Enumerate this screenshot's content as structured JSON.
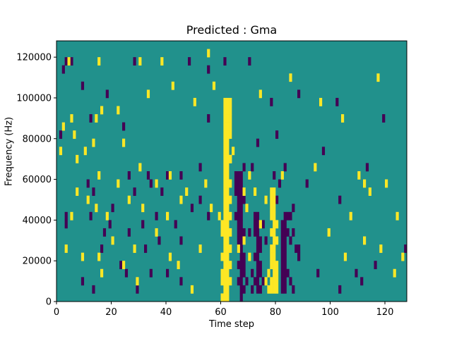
{
  "chart_data": {
    "type": "heatmap",
    "title": "Predicted : Gma",
    "xlabel": "Time step",
    "ylabel": "Frequency (Hz)",
    "xlim": [
      0,
      128
    ],
    "ylim": [
      0,
      128000
    ],
    "x_ticks": [
      0,
      20,
      40,
      60,
      80,
      100,
      120
    ],
    "y_ticks": [
      0,
      20000,
      40000,
      60000,
      80000,
      100000,
      120000
    ],
    "colors": {
      "low": "#440154",
      "mid": "#21918c",
      "high": "#fde725"
    },
    "background_value": 0,
    "cell_size": {
      "time_steps": 1,
      "hz": 4000
    },
    "cells_high": [
      [
        4,
        29
      ],
      [
        15,
        29
      ],
      [
        30,
        29
      ],
      [
        38,
        29
      ],
      [
        55,
        30
      ],
      [
        57,
        26
      ],
      [
        74,
        25
      ],
      [
        85,
        27
      ],
      [
        117,
        27
      ],
      [
        33,
        25
      ],
      [
        50,
        24
      ],
      [
        42,
        26
      ],
      [
        5,
        22
      ],
      [
        96,
        24
      ],
      [
        16,
        23
      ],
      [
        22,
        23
      ],
      [
        14,
        22
      ],
      [
        104,
        22
      ],
      [
        6,
        20
      ],
      [
        13,
        19
      ],
      [
        30,
        16
      ],
      [
        36,
        14
      ],
      [
        22,
        14
      ],
      [
        41,
        15
      ],
      [
        110,
        15
      ],
      [
        1,
        18
      ],
      [
        15,
        15
      ],
      [
        24,
        19
      ],
      [
        7,
        13
      ],
      [
        14,
        11
      ],
      [
        47,
        13
      ],
      [
        54,
        14
      ],
      [
        63,
        17
      ],
      [
        94,
        16
      ],
      [
        112,
        14
      ],
      [
        120,
        14
      ],
      [
        5,
        10
      ],
      [
        26,
        12
      ],
      [
        114,
        13
      ],
      [
        107,
        10
      ],
      [
        124,
        10
      ],
      [
        2,
        21
      ],
      [
        7,
        17
      ],
      [
        10,
        18
      ],
      [
        64,
        18
      ],
      [
        70,
        15
      ],
      [
        82,
        15
      ],
      [
        31,
        11
      ],
      [
        40,
        10
      ],
      [
        45,
        12
      ],
      [
        56,
        11
      ],
      [
        59,
        10
      ],
      [
        3,
        6
      ],
      [
        15,
        5
      ],
      [
        28,
        6
      ],
      [
        41,
        5
      ],
      [
        62,
        8
      ],
      [
        74,
        9
      ],
      [
        11,
        12
      ],
      [
        18,
        10
      ],
      [
        20,
        7
      ],
      [
        36,
        8
      ],
      [
        52,
        6
      ],
      [
        68,
        7
      ],
      [
        9,
        5
      ],
      [
        16,
        3
      ],
      [
        24,
        4
      ],
      [
        29,
        2
      ],
      [
        44,
        4
      ],
      [
        49,
        1
      ],
      [
        99,
        8
      ],
      [
        105,
        5
      ],
      [
        112,
        7
      ],
      [
        118,
        6
      ],
      [
        123,
        3
      ],
      [
        126,
        5
      ],
      [
        61,
        24
      ],
      [
        62,
        24
      ],
      [
        63,
        24
      ],
      [
        61,
        23
      ],
      [
        62,
        23
      ],
      [
        63,
        23
      ],
      [
        61,
        22
      ],
      [
        62,
        22
      ],
      [
        63,
        22
      ],
      [
        61,
        21
      ],
      [
        62,
        21
      ],
      [
        63,
        21
      ],
      [
        61,
        20
      ],
      [
        62,
        20
      ],
      [
        63,
        20
      ],
      [
        61,
        19
      ],
      [
        62,
        19
      ],
      [
        61,
        18
      ],
      [
        62,
        18
      ],
      [
        61,
        17
      ],
      [
        62,
        17
      ],
      [
        63,
        17
      ],
      [
        61,
        16
      ],
      [
        62,
        16
      ],
      [
        61,
        15
      ],
      [
        62,
        15
      ],
      [
        61,
        14
      ],
      [
        62,
        14
      ],
      [
        63,
        14
      ],
      [
        61,
        13
      ],
      [
        62,
        13
      ],
      [
        61,
        12
      ],
      [
        62,
        12
      ],
      [
        63,
        12
      ],
      [
        61,
        11
      ],
      [
        62,
        11
      ],
      [
        61,
        10
      ],
      [
        62,
        10
      ],
      [
        63,
        10
      ],
      [
        60,
        9
      ],
      [
        61,
        9
      ],
      [
        62,
        9
      ],
      [
        60,
        8
      ],
      [
        61,
        8
      ],
      [
        62,
        8
      ],
      [
        63,
        8
      ],
      [
        61,
        7
      ],
      [
        62,
        7
      ],
      [
        61,
        6
      ],
      [
        62,
        6
      ],
      [
        63,
        6
      ],
      [
        60,
        5
      ],
      [
        61,
        5
      ],
      [
        62,
        5
      ],
      [
        61,
        4
      ],
      [
        62,
        4
      ],
      [
        63,
        4
      ],
      [
        60,
        3
      ],
      [
        61,
        3
      ],
      [
        62,
        3
      ],
      [
        60,
        2
      ],
      [
        61,
        2
      ],
      [
        62,
        2
      ],
      [
        63,
        2
      ],
      [
        61,
        1
      ],
      [
        62,
        1
      ],
      [
        60,
        0
      ],
      [
        61,
        0
      ],
      [
        62,
        0
      ],
      [
        78,
        13
      ],
      [
        79,
        13
      ],
      [
        78,
        12
      ],
      [
        79,
        12
      ],
      [
        78,
        11
      ],
      [
        79,
        11
      ],
      [
        78,
        10
      ],
      [
        79,
        10
      ],
      [
        79,
        9
      ],
      [
        80,
        9
      ],
      [
        78,
        8
      ],
      [
        79,
        8
      ],
      [
        79,
        7
      ],
      [
        80,
        7
      ],
      [
        78,
        6
      ],
      [
        79,
        6
      ],
      [
        78,
        5
      ],
      [
        79,
        5
      ],
      [
        78,
        4
      ],
      [
        79,
        4
      ],
      [
        80,
        4
      ],
      [
        79,
        3
      ],
      [
        80,
        3
      ],
      [
        78,
        2
      ],
      [
        79,
        2
      ],
      [
        80,
        2
      ],
      [
        78,
        1
      ],
      [
        79,
        1
      ],
      [
        80,
        1
      ],
      [
        77,
        3
      ],
      [
        76,
        2
      ],
      [
        77,
        1
      ],
      [
        69,
        11
      ],
      [
        72,
        13
      ],
      [
        76,
        12
      ],
      [
        70,
        5
      ],
      [
        66,
        6
      ],
      [
        68,
        13
      ]
    ],
    "cells_low": [
      [
        3,
        29
      ],
      [
        5,
        29
      ],
      [
        28,
        29
      ],
      [
        48,
        29
      ],
      [
        70,
        29
      ],
      [
        55,
        28
      ],
      [
        61,
        29
      ],
      [
        2,
        28
      ],
      [
        9,
        26
      ],
      [
        18,
        25
      ],
      [
        78,
        24
      ],
      [
        88,
        25
      ],
      [
        102,
        24
      ],
      [
        55,
        22
      ],
      [
        119,
        22
      ],
      [
        1,
        20
      ],
      [
        12,
        22
      ],
      [
        24,
        21
      ],
      [
        80,
        20
      ],
      [
        73,
        19
      ],
      [
        97,
        18
      ],
      [
        33,
        15
      ],
      [
        34,
        14
      ],
      [
        45,
        15
      ],
      [
        83,
        16
      ],
      [
        68,
        16
      ],
      [
        71,
        16
      ],
      [
        11,
        14
      ],
      [
        26,
        15
      ],
      [
        40,
        15
      ],
      [
        52,
        16
      ],
      [
        91,
        14
      ],
      [
        113,
        16
      ],
      [
        12,
        10
      ],
      [
        20,
        11
      ],
      [
        28,
        13
      ],
      [
        38,
        13
      ],
      [
        49,
        11
      ],
      [
        52,
        12
      ],
      [
        3,
        9
      ],
      [
        17,
        8
      ],
      [
        36,
        10
      ],
      [
        45,
        7
      ],
      [
        86,
        11
      ],
      [
        103,
        12
      ],
      [
        3,
        10
      ],
      [
        13,
        13
      ],
      [
        19,
        9
      ],
      [
        31,
        9
      ],
      [
        43,
        9
      ],
      [
        55,
        10
      ],
      [
        23,
        4
      ],
      [
        25,
        3
      ],
      [
        32,
        6
      ],
      [
        37,
        7
      ],
      [
        40,
        3
      ],
      [
        45,
        2
      ],
      [
        9,
        2
      ],
      [
        13,
        1
      ],
      [
        16,
        6
      ],
      [
        26,
        8
      ],
      [
        29,
        1
      ],
      [
        34,
        3
      ],
      [
        95,
        3
      ],
      [
        103,
        1
      ],
      [
        109,
        3
      ],
      [
        111,
        2
      ],
      [
        116,
        4
      ],
      [
        127,
        6
      ],
      [
        65,
        15
      ],
      [
        66,
        15
      ],
      [
        67,
        15
      ],
      [
        65,
        14
      ],
      [
        66,
        14
      ],
      [
        67,
        14
      ],
      [
        65,
        13
      ],
      [
        66,
        13
      ],
      [
        67,
        13
      ],
      [
        66,
        12
      ],
      [
        67,
        12
      ],
      [
        68,
        12
      ],
      [
        66,
        11
      ],
      [
        67,
        11
      ],
      [
        65,
        10
      ],
      [
        66,
        10
      ],
      [
        67,
        10
      ],
      [
        66,
        9
      ],
      [
        67,
        9
      ],
      [
        66,
        8
      ],
      [
        67,
        8
      ],
      [
        68,
        8
      ],
      [
        66,
        7
      ],
      [
        67,
        7
      ],
      [
        66,
        6
      ],
      [
        67,
        6
      ],
      [
        67,
        5
      ],
      [
        68,
        5
      ],
      [
        66,
        4
      ],
      [
        67,
        4
      ],
      [
        68,
        4
      ],
      [
        67,
        3
      ],
      [
        68,
        3
      ],
      [
        66,
        2
      ],
      [
        67,
        2
      ],
      [
        67,
        1
      ],
      [
        68,
        1
      ],
      [
        67,
        0
      ],
      [
        72,
        10
      ],
      [
        73,
        10
      ],
      [
        72,
        9
      ],
      [
        73,
        9
      ],
      [
        72,
        8
      ],
      [
        73,
        8
      ],
      [
        73,
        7
      ],
      [
        74,
        7
      ],
      [
        73,
        6
      ],
      [
        74,
        6
      ],
      [
        72,
        5
      ],
      [
        73,
        5
      ],
      [
        73,
        4
      ],
      [
        74,
        4
      ],
      [
        73,
        3
      ],
      [
        74,
        3
      ],
      [
        72,
        2
      ],
      [
        73,
        2
      ],
      [
        73,
        1
      ],
      [
        74,
        1
      ],
      [
        83,
        10
      ],
      [
        84,
        10
      ],
      [
        85,
        10
      ],
      [
        82,
        9
      ],
      [
        83,
        9
      ],
      [
        82,
        8
      ],
      [
        83,
        8
      ],
      [
        84,
        8
      ],
      [
        82,
        7
      ],
      [
        83,
        7
      ],
      [
        82,
        6
      ],
      [
        83,
        6
      ],
      [
        82,
        5
      ],
      [
        83,
        5
      ],
      [
        82,
        4
      ],
      [
        83,
        4
      ],
      [
        82,
        3
      ],
      [
        83,
        3
      ],
      [
        84,
        3
      ],
      [
        82,
        2
      ],
      [
        83,
        2
      ],
      [
        82,
        1
      ],
      [
        83,
        1
      ],
      [
        85,
        2
      ],
      [
        86,
        1
      ],
      [
        85,
        7
      ],
      [
        86,
        8
      ],
      [
        87,
        6
      ],
      [
        88,
        5
      ],
      [
        88,
        6
      ],
      [
        71,
        3
      ],
      [
        76,
        7
      ],
      [
        75,
        9
      ],
      [
        70,
        8
      ],
      [
        69,
        2
      ],
      [
        71,
        1
      ],
      [
        75,
        2
      ],
      [
        79,
        15
      ],
      [
        81,
        14
      ],
      [
        80,
        12
      ]
    ]
  }
}
